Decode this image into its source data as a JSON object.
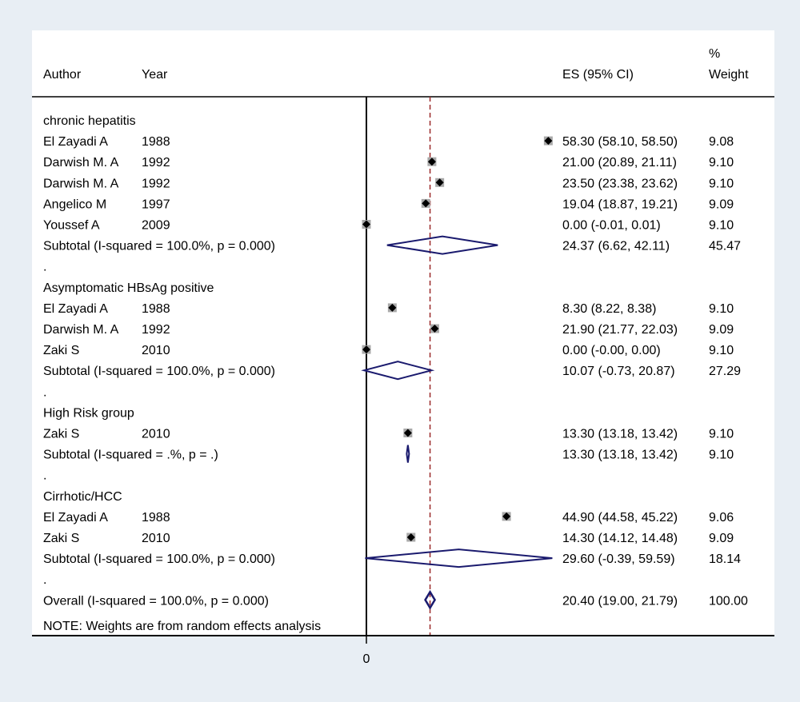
{
  "header": {
    "author": "Author",
    "year": "Year",
    "es": "ES (95% CI)",
    "weight_line1": "%",
    "weight_line2": "Weight"
  },
  "note": "NOTE: Weights are from random effects analysis",
  "colors": {
    "background": "#e8eef4",
    "panel": "#ffffff",
    "diamond": "#1a1a6e",
    "reference_line": "#9b2a2a",
    "marker": "#000000",
    "marker_box": "#a9a9a9"
  },
  "chart_data": {
    "type": "forest",
    "effect_label": "ES (95% CI)",
    "x_ticks": [
      0
    ],
    "overall_es": 20.4,
    "rows": [
      {
        "kind": "group",
        "label": "chronic hepatitis"
      },
      {
        "kind": "study",
        "author": "El Zayadi A",
        "year": "1988",
        "es": 58.3,
        "lo": 58.1,
        "hi": 58.5,
        "ci": "58.30 (58.10, 58.50)",
        "weight": "9.08"
      },
      {
        "kind": "study",
        "author": "Darwish M. A",
        "year": "1992",
        "es": 21.0,
        "lo": 20.89,
        "hi": 21.11,
        "ci": "21.00 (20.89, 21.11)",
        "weight": "9.10"
      },
      {
        "kind": "study",
        "author": "Darwish M. A",
        "year": "1992",
        "es": 23.5,
        "lo": 23.38,
        "hi": 23.62,
        "ci": "23.50 (23.38, 23.62)",
        "weight": "9.10"
      },
      {
        "kind": "study",
        "author": "Angelico M",
        "year": "1997",
        "es": 19.04,
        "lo": 18.87,
        "hi": 19.21,
        "ci": "19.04 (18.87, 19.21)",
        "weight": "9.09"
      },
      {
        "kind": "study",
        "author": "Youssef A",
        "year": "2009",
        "es": 0.0,
        "lo": -0.01,
        "hi": 0.01,
        "ci": "0.00 (-0.01, 0.01)",
        "weight": "9.10"
      },
      {
        "kind": "subtotal",
        "label": "Subtotal  (I-squared = 100.0%, p = 0.000)",
        "es": 24.37,
        "lo": 6.62,
        "hi": 42.11,
        "ci": "24.37 (6.62, 42.11)",
        "weight": "45.47"
      },
      {
        "kind": "spacer",
        "label": "."
      },
      {
        "kind": "group",
        "label": "Asymptomatic HBsAg positive"
      },
      {
        "kind": "study",
        "author": "El Zayadi A",
        "year": "1988",
        "es": 8.3,
        "lo": 8.22,
        "hi": 8.38,
        "ci": "8.30 (8.22, 8.38)",
        "weight": "9.10"
      },
      {
        "kind": "study",
        "author": "Darwish M. A",
        "year": "1992",
        "es": 21.9,
        "lo": 21.77,
        "hi": 22.03,
        "ci": "21.90 (21.77, 22.03)",
        "weight": "9.09"
      },
      {
        "kind": "study",
        "author": "Zaki S",
        "year": "2010",
        "es": 0.0,
        "lo": -0.0,
        "hi": 0.0,
        "ci": "0.00 (-0.00, 0.00)",
        "weight": "9.10"
      },
      {
        "kind": "subtotal",
        "label": "Subtotal  (I-squared = 100.0%, p = 0.000)",
        "es": 10.07,
        "lo": -0.73,
        "hi": 20.87,
        "ci": "10.07 (-0.73, 20.87)",
        "weight": "27.29"
      },
      {
        "kind": "spacer",
        "label": "."
      },
      {
        "kind": "group",
        "label": "High Risk group"
      },
      {
        "kind": "study",
        "author": "Zaki S",
        "year": "2010",
        "es": 13.3,
        "lo": 13.18,
        "hi": 13.42,
        "ci": "13.30 (13.18, 13.42)",
        "weight": "9.10"
      },
      {
        "kind": "subtotal",
        "label": "Subtotal  (I-squared = .%, p = .)",
        "es": 13.3,
        "lo": 13.18,
        "hi": 13.42,
        "ci": "13.30 (13.18, 13.42)",
        "weight": "9.10"
      },
      {
        "kind": "spacer",
        "label": "."
      },
      {
        "kind": "group",
        "label": "Cirrhotic/HCC"
      },
      {
        "kind": "study",
        "author": "El Zayadi A",
        "year": "1988",
        "es": 44.9,
        "lo": 44.58,
        "hi": 45.22,
        "ci": "44.90 (44.58, 45.22)",
        "weight": "9.06"
      },
      {
        "kind": "study",
        "author": "Zaki S",
        "year": "2010",
        "es": 14.3,
        "lo": 14.12,
        "hi": 14.48,
        "ci": "14.30 (14.12, 14.48)",
        "weight": "9.09"
      },
      {
        "kind": "subtotal",
        "label": "Subtotal  (I-squared = 100.0%, p = 0.000)",
        "es": 29.6,
        "lo": -0.39,
        "hi": 59.59,
        "ci": "29.60 (-0.39, 59.59)",
        "weight": "18.14"
      },
      {
        "kind": "spacer",
        "label": "."
      },
      {
        "kind": "overall",
        "label": "Overall  (I-squared = 100.0%, p = 0.000)",
        "es": 20.4,
        "lo": 19.0,
        "hi": 21.79,
        "ci": "20.40 (19.00, 21.79)",
        "weight": "100.00"
      }
    ]
  }
}
